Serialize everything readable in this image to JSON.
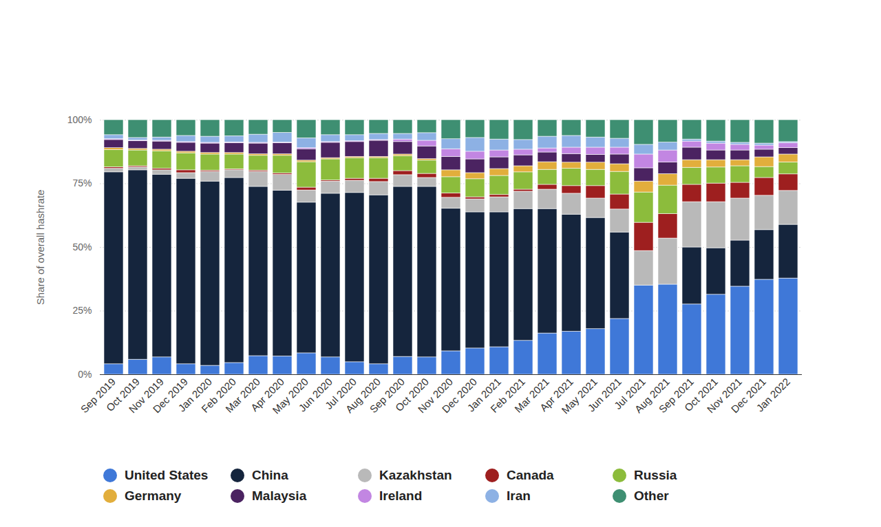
{
  "chart_data": {
    "type": "bar",
    "stacked": true,
    "grid": true,
    "legend": "bottom",
    "y_label": "Share of overall hashrate",
    "ylim": [
      0,
      100
    ],
    "yticks": [
      {
        "value": 0,
        "label": "0%"
      },
      {
        "value": 25,
        "label": "25%"
      },
      {
        "value": 50,
        "label": "50%"
      },
      {
        "value": 75,
        "label": "75%"
      },
      {
        "value": 100,
        "label": "100%"
      }
    ],
    "categories": [
      "Sep 2019",
      "Oct 2019",
      "Nov 2019",
      "Dec 2019",
      "Jan 2020",
      "Feb 2020",
      "Mar 2020",
      "Apr 2020",
      "May 2020",
      "Jun 2020",
      "Jul 2020",
      "Aug 2020",
      "Sep 2020",
      "Oct 2020",
      "Nov 2020",
      "Dec 2020",
      "Jan 2021",
      "Feb 2021",
      "Mar 2021",
      "Apr 2021",
      "May 2021",
      "Jun 2021",
      "Jul 2021",
      "Aug 2021",
      "Sep 2021",
      "Oct 2021",
      "Nov 2021",
      "Dec 2021",
      "Jan 2022"
    ],
    "series": [
      {
        "name": "United States",
        "color": "#3f78d8",
        "values": [
          4.1,
          5.9,
          6.8,
          4.1,
          3.5,
          4.6,
          7.3,
          7.2,
          8.4,
          6.8,
          4.9,
          4.1,
          7.0,
          6.8,
          9.2,
          10.3,
          10.8,
          13.3,
          16.2,
          16.9,
          17.9,
          21.9,
          35.0,
          35.4,
          27.6,
          31.4,
          34.6,
          37.3,
          37.8
        ]
      },
      {
        "name": "China",
        "color": "#15253d",
        "values": [
          75.4,
          74.4,
          71.8,
          72.9,
          72.4,
          72.7,
          66.5,
          65.1,
          59.2,
          64.3,
          66.5,
          66.4,
          66.8,
          67.0,
          56.0,
          53.5,
          53.0,
          51.8,
          48.9,
          46.0,
          43.7,
          34.0,
          0,
          0,
          22.4,
          18.3,
          18.1,
          19.5,
          21.1
        ]
      },
      {
        "name": "Kazakhstan",
        "color": "#b9b9b9",
        "values": [
          1.4,
          1.1,
          1.7,
          2.2,
          3.8,
          3.0,
          5.9,
          6.2,
          4.8,
          4.8,
          4.8,
          5.2,
          4.6,
          3.5,
          4.3,
          5.1,
          5.9,
          6.8,
          7.6,
          8.2,
          7.6,
          9.0,
          13.6,
          18.1,
          17.8,
          18.1,
          16.5,
          13.5,
          13.3
        ]
      },
      {
        "name": "Canada",
        "color": "#9e1f1f",
        "values": [
          0.6,
          0.5,
          0.6,
          1.1,
          0.5,
          0.4,
          0.5,
          0.6,
          1.1,
          0.4,
          0.8,
          1.3,
          1.6,
          1.6,
          1.7,
          0.8,
          0.9,
          0.8,
          1.9,
          3.0,
          4.9,
          5.9,
          11.1,
          9.6,
          6.8,
          7.3,
          6.2,
          7.0,
          6.5
        ]
      },
      {
        "name": "Russia",
        "color": "#8cbc3c",
        "values": [
          6.7,
          6.2,
          6.9,
          6.7,
          6.3,
          5.8,
          5.8,
          6.9,
          10.0,
          8.3,
          8.1,
          8.1,
          5.9,
          5.2,
          6.4,
          7.1,
          7.5,
          6.8,
          5.9,
          6.8,
          6.4,
          8.9,
          11.9,
          11.2,
          6.7,
          6.3,
          6.5,
          4.3,
          4.7
        ]
      },
      {
        "name": "Germany",
        "color": "#e2ae3c",
        "values": [
          0.8,
          0.6,
          0.6,
          0.6,
          0.6,
          0.6,
          0.6,
          0.6,
          0.6,
          0.5,
          0.5,
          0.5,
          0.6,
          0.6,
          2.7,
          2.4,
          2.7,
          2.4,
          3.0,
          2.4,
          2.8,
          3.0,
          4.3,
          4.5,
          3.0,
          2.9,
          2.4,
          3.8,
          3.1
        ]
      },
      {
        "name": "Malaysia",
        "color": "#4b2361",
        "values": [
          3.2,
          3.0,
          3.2,
          3.5,
          3.7,
          3.9,
          4.2,
          4.3,
          4.5,
          6.0,
          5.8,
          6.3,
          4.9,
          5.0,
          5.3,
          5.4,
          4.6,
          4.3,
          3.8,
          3.4,
          3.1,
          3.8,
          5.2,
          4.6,
          4.9,
          3.8,
          3.8,
          3.0,
          2.5
        ]
      },
      {
        "name": "Ireland",
        "color": "#c286e2",
        "values": [
          0.3,
          0.3,
          0.3,
          0.3,
          0.3,
          0.3,
          0.3,
          0.3,
          0.4,
          0.3,
          0.3,
          0.3,
          1.0,
          2.2,
          3.0,
          3.0,
          2.7,
          2.2,
          1.6,
          2.5,
          2.8,
          2.7,
          5.4,
          4.7,
          2.4,
          2.7,
          2.2,
          1.6,
          2.0
        ]
      },
      {
        "name": "Iran",
        "color": "#8db1e4",
        "values": [
          1.6,
          1.0,
          1.3,
          2.4,
          2.4,
          2.4,
          3.2,
          3.8,
          3.9,
          2.7,
          2.4,
          2.4,
          2.2,
          3.0,
          3.9,
          5.4,
          4.3,
          3.8,
          4.6,
          4.6,
          4.0,
          3.5,
          3.8,
          3.1,
          0.8,
          0.8,
          0.8,
          0.8,
          0.4
        ]
      },
      {
        "name": "Other",
        "color": "#3e8f72",
        "values": [
          5.9,
          7.0,
          6.8,
          6.2,
          6.5,
          6.3,
          5.7,
          5.0,
          7.1,
          5.9,
          5.9,
          5.4,
          5.4,
          5.1,
          7.5,
          7.0,
          7.6,
          7.8,
          6.5,
          6.2,
          6.8,
          7.3,
          9.7,
          8.8,
          7.6,
          8.4,
          8.9,
          9.2,
          8.6
        ]
      }
    ]
  }
}
